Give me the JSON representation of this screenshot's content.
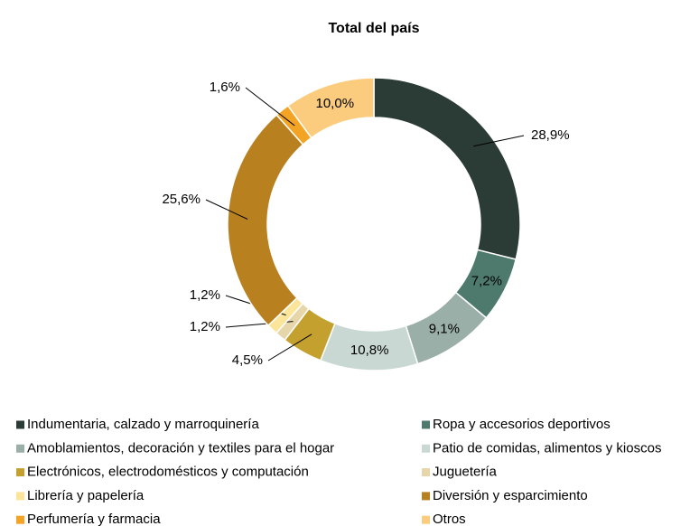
{
  "chart_data": {
    "type": "donut",
    "title": "Total del país",
    "categories": [
      "Indumentaria, calzado y marroquinería",
      "Ropa y accesorios deportivos",
      "Amoblamientos, decoración y textiles para el hogar",
      "Patio de comidas, alimentos y kioscos",
      "Electrónicos, electrodomésticos y computación",
      "Juguetería",
      "Librería y papelería",
      "Diversión y esparcimiento",
      "Perfumería y farmacia",
      "Otros"
    ],
    "values": [
      28.9,
      7.2,
      9.1,
      10.8,
      4.5,
      1.2,
      1.2,
      25.6,
      1.6,
      10.0
    ],
    "value_labels": [
      "28,9%",
      "7,2%",
      "9,1%",
      "10,8%",
      "4,5%",
      "1,2%",
      "1,2%",
      "25,6%",
      "1,6%",
      "10,0%"
    ],
    "colors": [
      "#2b3b36",
      "#4e7a6e",
      "#9aafa8",
      "#c9d8d2",
      "#c4a12e",
      "#e6d6aa",
      "#fbe59a",
      "#b8801f",
      "#f4a424",
      "#fbcc7e"
    ],
    "legend": "bottom"
  }
}
